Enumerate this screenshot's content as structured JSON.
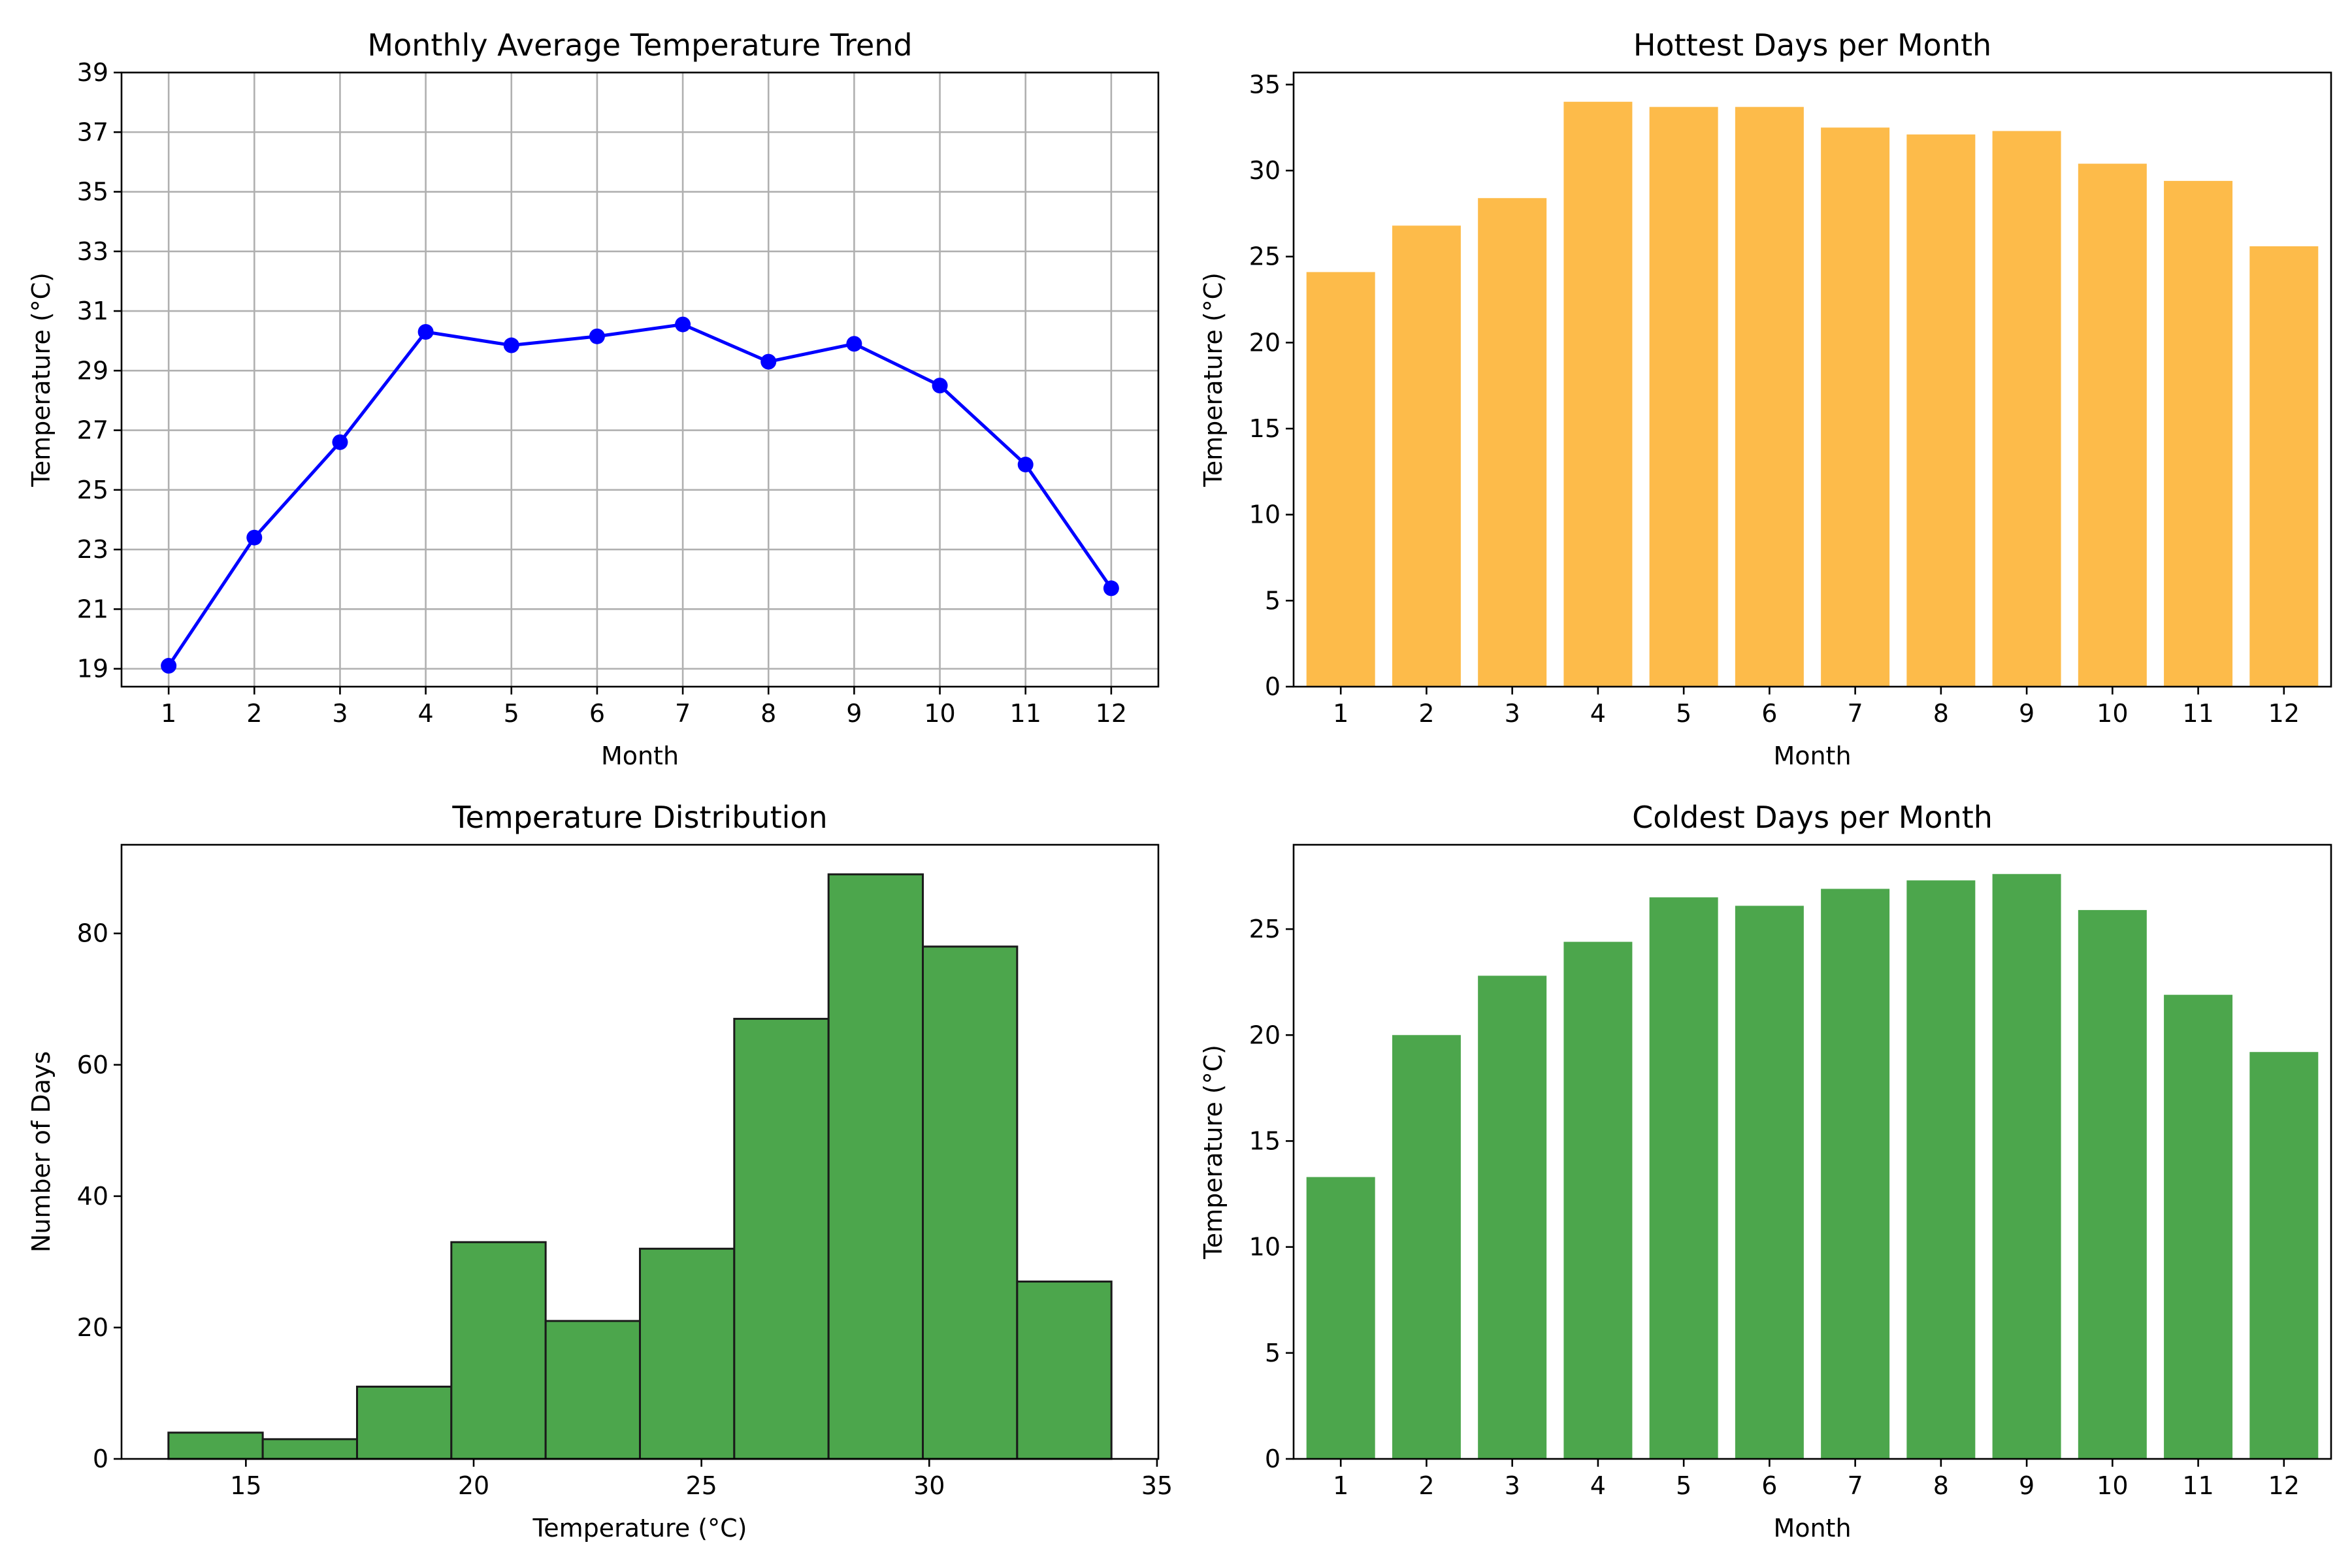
{
  "chart_data": [
    {
      "type": "line",
      "title": "Monthly Average Temperature Trend",
      "xlabel": "Month",
      "ylabel": "Temperature (°C)",
      "x": [
        1,
        2,
        3,
        4,
        5,
        6,
        7,
        8,
        9,
        10,
        11,
        12
      ],
      "series": [
        {
          "values": [
            19.1,
            23.4,
            26.6,
            30.3,
            29.85,
            30.15,
            30.55,
            29.3,
            29.9,
            28.5,
            25.85,
            21.7
          ]
        }
      ],
      "xticks": [
        "1",
        "2",
        "3",
        "4",
        "5",
        "6",
        "7",
        "8",
        "9",
        "10",
        "11",
        "12"
      ],
      "yticks": [
        "19",
        "21",
        "23",
        "25",
        "27",
        "29",
        "31",
        "33",
        "35",
        "37",
        "39"
      ],
      "xlim": [
        0.45,
        12.55
      ],
      "ylim": [
        18.4,
        39
      ],
      "grid": true,
      "color": "#0000ff"
    },
    {
      "type": "bar",
      "title": "Hottest Days per Month",
      "xlabel": "Month",
      "ylabel": "Temperature (°C)",
      "categories": [
        "1",
        "2",
        "3",
        "4",
        "5",
        "6",
        "7",
        "8",
        "9",
        "10",
        "11",
        "12"
      ],
      "values": [
        24.1,
        26.8,
        28.4,
        34.0,
        33.7,
        33.7,
        32.5,
        32.1,
        32.3,
        30.4,
        29.4,
        25.6
      ],
      "yticks": [
        "0",
        "5",
        "10",
        "15",
        "20",
        "25",
        "30",
        "35"
      ],
      "ylim": [
        0,
        35.7
      ],
      "grid": false,
      "color": "#fdbb4a"
    },
    {
      "type": "bar",
      "subtype": "histogram",
      "title": "Temperature Distribution",
      "xlabel": "Temperature (°C)",
      "ylabel": "Number of Days",
      "bin_edges": [
        13.3,
        15.37,
        17.44,
        19.51,
        21.58,
        23.65,
        25.72,
        27.79,
        29.86,
        31.93,
        34.0
      ],
      "counts": [
        4,
        3,
        11,
        33,
        21,
        32,
        67,
        89,
        78,
        27
      ],
      "xticks": [
        "15",
        "20",
        "25",
        "30",
        "35"
      ],
      "yticks": [
        "0",
        "20",
        "40",
        "60",
        "80"
      ],
      "xlim": [
        12.27,
        35.03
      ],
      "ylim": [
        0,
        93.5
      ],
      "grid": false,
      "color": "#4ca64c",
      "edgecolor": "#1a1a1a"
    },
    {
      "type": "bar",
      "title": "Coldest Days per Month",
      "xlabel": "Month",
      "ylabel": "Temperature (°C)",
      "categories": [
        "1",
        "2",
        "3",
        "4",
        "5",
        "6",
        "7",
        "8",
        "9",
        "10",
        "11",
        "12"
      ],
      "values": [
        13.3,
        20.0,
        22.8,
        24.4,
        26.5,
        26.1,
        26.9,
        27.3,
        27.6,
        25.9,
        21.9,
        19.2
      ],
      "yticks": [
        "0",
        "5",
        "10",
        "15",
        "20",
        "25"
      ],
      "ylim": [
        0,
        28.98
      ],
      "grid": false,
      "color": "#4ca64c"
    }
  ]
}
